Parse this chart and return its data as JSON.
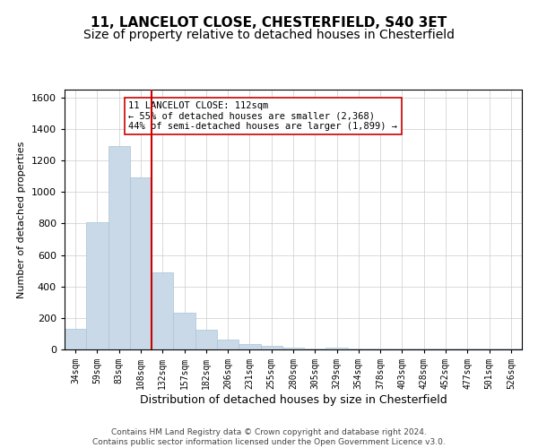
{
  "title": "11, LANCELOT CLOSE, CHESTERFIELD, S40 3ET",
  "subtitle": "Size of property relative to detached houses in Chesterfield",
  "xlabel": "Distribution of detached houses by size in Chesterfield",
  "ylabel": "Number of detached properties",
  "footer": "Contains HM Land Registry data © Crown copyright and database right 2024.\nContains public sector information licensed under the Open Government Licence v3.0.",
  "categories": [
    "34sqm",
    "59sqm",
    "83sqm",
    "108sqm",
    "132sqm",
    "157sqm",
    "182sqm",
    "206sqm",
    "231sqm",
    "255sqm",
    "280sqm",
    "305sqm",
    "329sqm",
    "354sqm",
    "378sqm",
    "403sqm",
    "428sqm",
    "452sqm",
    "477sqm",
    "501sqm",
    "526sqm"
  ],
  "values": [
    130,
    810,
    1290,
    1090,
    490,
    235,
    125,
    65,
    35,
    20,
    10,
    5,
    10,
    5,
    5,
    5,
    5,
    5,
    5,
    5,
    5
  ],
  "bar_color": "#c9d9e8",
  "bar_edge_color": "#a8c4d8",
  "vline_color": "#cc0000",
  "annotation_text": "11 LANCELOT CLOSE: 112sqm\n← 55% of detached houses are smaller (2,368)\n44% of semi-detached houses are larger (1,899) →",
  "annotation_box_color": "#ffffff",
  "annotation_box_edge": "#cc0000",
  "ylim": [
    0,
    1650
  ],
  "yticks": [
    0,
    200,
    400,
    600,
    800,
    1000,
    1200,
    1400,
    1600
  ],
  "grid_color": "#cccccc",
  "background_color": "#ffffff",
  "title_fontsize": 11,
  "subtitle_fontsize": 10,
  "tick_fontsize": 7,
  "ylabel_fontsize": 8,
  "xlabel_fontsize": 9,
  "footer_fontsize": 6.5,
  "annotation_fontsize": 7.5
}
